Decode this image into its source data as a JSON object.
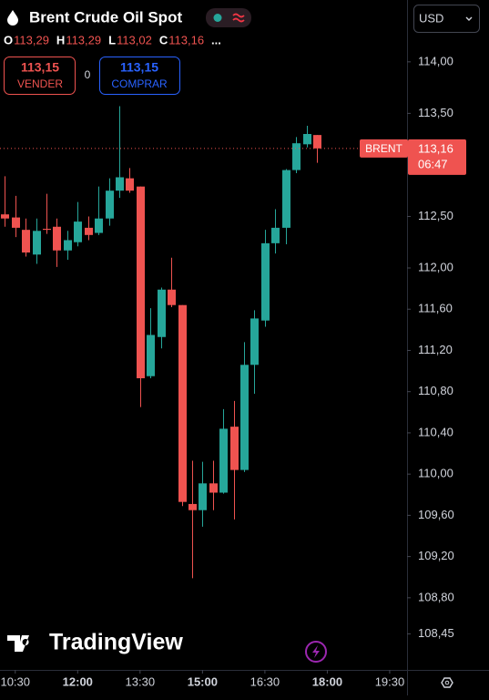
{
  "title": "Brent Crude Oil Spot",
  "currency": "USD",
  "ohlc_header": [
    {
      "key": "O",
      "value": "113,29"
    },
    {
      "key": "H",
      "value": "113,29"
    },
    {
      "key": "L",
      "value": "113,02"
    },
    {
      "key": "C",
      "value": "113,16"
    }
  ],
  "more": "...",
  "trade": {
    "sell": {
      "price": "113,15",
      "label": "VENDER"
    },
    "spread": "0",
    "buy": {
      "price": "113,15",
      "label": "COMPRAR"
    }
  },
  "watermark": "TradingView",
  "chart_data": {
    "type": "candlestick",
    "symbol_label": "BRENT",
    "x": [
      "10:15",
      "10:30",
      "10:45",
      "11:00",
      "11:15",
      "11:30",
      "11:45",
      "12:00",
      "12:15",
      "12:30",
      "12:45",
      "13:00",
      "13:15",
      "13:30",
      "13:45",
      "14:00",
      "14:15",
      "14:30",
      "14:45",
      "15:00",
      "15:15",
      "15:30",
      "15:45",
      "16:00",
      "16:15",
      "16:30",
      "16:45",
      "17:00",
      "17:15",
      "17:30",
      "17:45"
    ],
    "open": [
      112.52,
      112.49,
      112.37,
      112.13,
      112.38,
      112.4,
      112.17,
      112.25,
      112.39,
      112.34,
      112.48,
      112.75,
      112.87,
      112.79,
      110.95,
      111.33,
      111.79,
      111.64,
      109.71,
      109.65,
      109.91,
      109.82,
      110.46,
      110.04,
      111.06,
      111.49,
      112.24,
      112.39,
      112.95,
      113.2,
      113.29
    ],
    "high": [
      112.89,
      112.7,
      112.48,
      112.48,
      112.72,
      112.48,
      112.36,
      112.64,
      112.5,
      112.79,
      112.87,
      113.57,
      112.97,
      112.79,
      111.61,
      111.81,
      112.1,
      111.64,
      110.13,
      110.12,
      110.13,
      110.63,
      110.71,
      111.28,
      111.59,
      112.37,
      112.57,
      112.96,
      113.27,
      113.38,
      113.29
    ],
    "low": [
      112.4,
      112.3,
      112.11,
      112.04,
      112.33,
      112.01,
      112.08,
      112.21,
      112.27,
      112.32,
      112.41,
      112.68,
      112.73,
      110.65,
      110.93,
      111.22,
      111.62,
      109.69,
      108.99,
      109.49,
      109.65,
      109.81,
      109.56,
      110.02,
      110.78,
      111.43,
      112.14,
      112.23,
      112.92,
      113.17,
      113.02
    ],
    "close": [
      112.48,
      112.39,
      112.15,
      112.36,
      112.37,
      112.17,
      112.27,
      112.45,
      112.32,
      112.48,
      112.75,
      112.88,
      112.75,
      110.93,
      111.35,
      111.79,
      111.64,
      109.73,
      109.65,
      109.91,
      109.82,
      110.44,
      110.04,
      111.06,
      111.51,
      112.24,
      112.39,
      112.95,
      113.21,
      113.3,
      113.16
    ],
    "up_color": "#26a69a",
    "down_color": "#ef5350",
    "ylim": [
      108.1,
      114.6
    ],
    "yticks": [
      {
        "value": 114,
        "label": "114,00"
      },
      {
        "value": 113.5,
        "label": "113,50"
      },
      {
        "value": 112.5,
        "label": "112,50"
      },
      {
        "value": 112,
        "label": "112,00"
      },
      {
        "value": 111.6,
        "label": "111,60"
      },
      {
        "value": 111.2,
        "label": "111,20"
      },
      {
        "value": 110.8,
        "label": "110,80"
      },
      {
        "value": 110.4,
        "label": "110,40"
      },
      {
        "value": 110,
        "label": "110,00"
      },
      {
        "value": 109.6,
        "label": "109,60"
      },
      {
        "value": 109.2,
        "label": "109,20"
      },
      {
        "value": 108.8,
        "label": "108,80"
      },
      {
        "value": 108.45,
        "label": "108,45"
      }
    ],
    "xlim": [
      "10:08",
      "19:55"
    ],
    "xticks": [
      "10:30",
      "12:00",
      "13:30",
      "15:00",
      "16:30",
      "18:00",
      "19:30"
    ],
    "last_price": {
      "value": 113.16,
      "label": "113,16"
    },
    "countdown": "06:47"
  }
}
